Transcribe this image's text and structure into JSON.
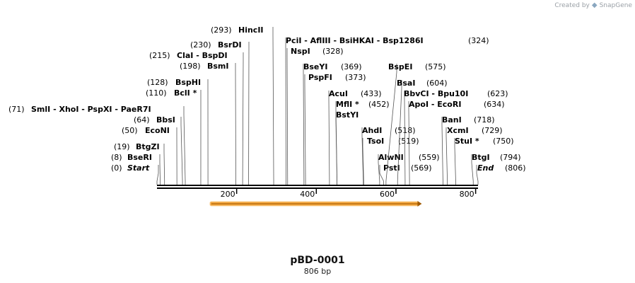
{
  "watermark": {
    "prefix": "Created by",
    "brand": "SnapGene",
    "icon": "snapgene-logo-icon"
  },
  "plasmid": {
    "name": "pBD-0001",
    "length_label": "806 bp",
    "length_bp": 806
  },
  "axis": {
    "ticks": [
      200,
      400,
      600,
      800
    ],
    "tick_labels": [
      "200",
      "400",
      "600",
      "800"
    ]
  },
  "feature": {
    "start_bp": 133,
    "end_bp": 663,
    "color": "#f2a33a",
    "direction": "forward"
  },
  "colors": {
    "line": "#555555",
    "backbone": "#000000",
    "arrow_outline": "#a05a00"
  },
  "sites": [
    {
      "pos": 0,
      "label": "Start",
      "pos_label": "(0)",
      "italic": true
    },
    {
      "pos": 8,
      "label": "BseRI",
      "pos_label": "(8)"
    },
    {
      "pos": 19,
      "label": "BtgZI",
      "pos_label": "(19)"
    },
    {
      "pos": 50,
      "label": "EcoNI",
      "pos_label": "(50)"
    },
    {
      "pos": 64,
      "label": "BbsI",
      "pos_label": "(64)"
    },
    {
      "pos": 71,
      "label": "SmlI  -  XhoI  -  PspXI  -  PaeR7I",
      "pos_label": "(71)"
    },
    {
      "pos": 110,
      "label": "BclI *",
      "pos_label": "(110)"
    },
    {
      "pos": 128,
      "label": "BspHI",
      "pos_label": "(128)"
    },
    {
      "pos": 198,
      "label": "BsmI",
      "pos_label": "(198)"
    },
    {
      "pos": 215,
      "label": "ClaI  -  BspDI",
      "pos_label": "(215)"
    },
    {
      "pos": 230,
      "label": "BsrDI",
      "pos_label": "(230)"
    },
    {
      "pos": 293,
      "label": "HincII",
      "pos_label": "(293)"
    },
    {
      "pos": 324,
      "label": "PciI  -  AflIII  -  BsiHKAI  -  Bsp1286I",
      "pos_label": "(324)"
    },
    {
      "pos": 328,
      "label": "NspI",
      "pos_label": "(328)"
    },
    {
      "pos": 369,
      "label": "BseYI",
      "pos_label": "(369)"
    },
    {
      "pos": 373,
      "label": "PspFI",
      "pos_label": "(373)"
    },
    {
      "pos": 433,
      "label": "AcuI",
      "pos_label": "(433)"
    },
    {
      "pos": 452,
      "label": "MflI *",
      "pos_label": "(452)"
    },
    {
      "pos": 452,
      "label": "BstYI",
      "pos_label": ""
    },
    {
      "pos": 518,
      "label": "AhdI",
      "pos_label": "(518)"
    },
    {
      "pos": 519,
      "label": "TsoI",
      "pos_label": "(519)"
    },
    {
      "pos": 559,
      "label": "AlwNI",
      "pos_label": "(559)"
    },
    {
      "pos": 569,
      "label": "PstI",
      "pos_label": "(569)"
    },
    {
      "pos": 575,
      "label": "BspEI",
      "pos_label": "(575)"
    },
    {
      "pos": 604,
      "label": "BsaI",
      "pos_label": "(604)"
    },
    {
      "pos": 623,
      "label": "BbvCI  -  Bpu10I",
      "pos_label": "(623)"
    },
    {
      "pos": 634,
      "label": "ApoI  -  EcoRI",
      "pos_label": "(634)"
    },
    {
      "pos": 718,
      "label": "BanI",
      "pos_label": "(718)"
    },
    {
      "pos": 729,
      "label": "XcmI",
      "pos_label": "(729)"
    },
    {
      "pos": 750,
      "label": "StuI *",
      "pos_label": "(750)"
    },
    {
      "pos": 794,
      "label": "BtgI",
      "pos_label": "(794)"
    },
    {
      "pos": 806,
      "label": "End",
      "pos_label": "(806)",
      "italic": true
    }
  ]
}
